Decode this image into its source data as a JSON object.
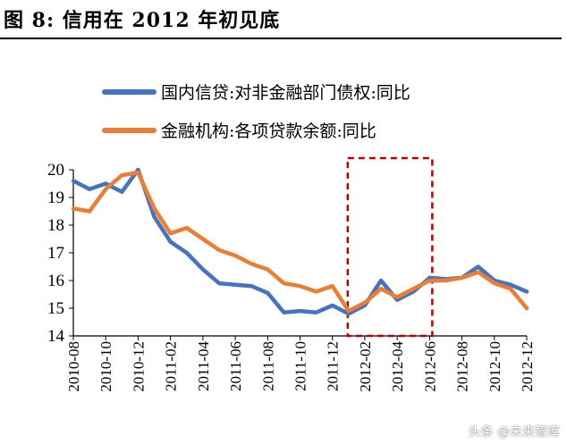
{
  "header": {
    "title": "图 8: 信用在 2012 年初见底"
  },
  "watermark": "头条 @未来智库",
  "chart_data": {
    "type": "line",
    "x": [
      "2010-08",
      "2010-09",
      "2010-10",
      "2010-11",
      "2010-12",
      "2011-01",
      "2011-02",
      "2011-03",
      "2011-04",
      "2011-05",
      "2011-06",
      "2011-07",
      "2011-08",
      "2011-09",
      "2011-10",
      "2011-11",
      "2011-12",
      "2012-01",
      "2012-02",
      "2012-03",
      "2012-04",
      "2012-05",
      "2012-06",
      "2012-07",
      "2012-08",
      "2012-09",
      "2012-10",
      "2012-11",
      "2012-12"
    ],
    "xtick_labels": [
      "2010-08",
      "2010-10",
      "2010-12",
      "2011-02",
      "2011-04",
      "2011-06",
      "2011-08",
      "2011-10",
      "2011-12",
      "2012-02",
      "2012-04",
      "2012-06",
      "2012-08",
      "2012-10",
      "2012-12"
    ],
    "ylim": [
      14,
      20
    ],
    "yticks": [
      14,
      15,
      16,
      17,
      18,
      19,
      20
    ],
    "series": [
      {
        "name": "国内信贷:对非金融部门债权:同比",
        "color": "#4472c4",
        "values": [
          19.6,
          19.3,
          19.5,
          19.2,
          20.0,
          18.3,
          17.4,
          17.0,
          16.4,
          15.9,
          15.85,
          15.8,
          15.55,
          14.85,
          14.9,
          14.85,
          15.1,
          14.8,
          15.1,
          16.0,
          15.3,
          15.6,
          16.1,
          16.05,
          16.1,
          16.5,
          16.0,
          15.85,
          15.6
        ]
      },
      {
        "name": "金融机构:各项贷款余额:同比",
        "color": "#ed7d31",
        "values": [
          18.6,
          18.5,
          19.3,
          19.8,
          19.9,
          18.6,
          17.7,
          17.9,
          17.5,
          17.1,
          16.9,
          16.6,
          16.4,
          15.9,
          15.8,
          15.6,
          15.8,
          14.9,
          15.2,
          15.7,
          15.4,
          15.7,
          16.0,
          16.0,
          16.1,
          16.3,
          15.9,
          15.7,
          15.0
        ]
      }
    ],
    "highlight_box": {
      "x_range": [
        "2012-01",
        "2012-06"
      ],
      "style": "dashed",
      "color": "#c00000"
    },
    "legend_position": "top-center",
    "grid": false
  }
}
